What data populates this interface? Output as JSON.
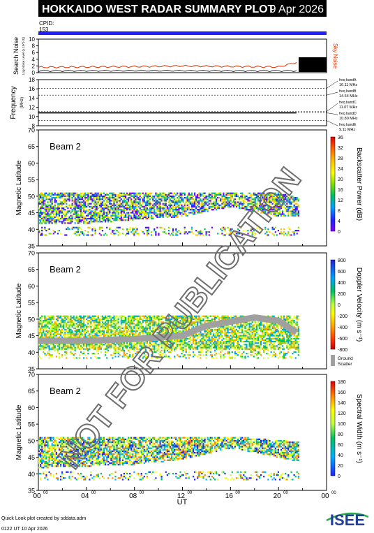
{
  "header": {
    "title": "HOKKAIDO WEST RADAR SUMMARY PLOT",
    "date": "9 Apr 2026",
    "cpid_label": "CPID:",
    "cpid_value": "153"
  },
  "colors": {
    "header_bg": "#000000",
    "cpid_bar": "#2020ff",
    "noise_search": "#000000",
    "noise_sky": "#e03000",
    "ground_scatter": "#a0a0a0"
  },
  "noise_panel": {
    "ylabel": "Search Noise",
    "ylabel_sub": "Log Noise Level (x 10^(-3))",
    "right_label": "Sky Noise",
    "yticks": [
      "10",
      "8",
      "6",
      "4",
      "2",
      "0"
    ]
  },
  "freq_panel": {
    "ylabel": "Frequency",
    "ylabel_unit": "(MHz)",
    "yticks": [
      "18",
      "16",
      "14",
      "12",
      "10",
      "8"
    ],
    "bands": [
      {
        "label": "freq bandA",
        "value": "16.11 MHz"
      },
      {
        "label": "freq bandB",
        "value": "14.64 MHz"
      },
      {
        "label": "freq bandC",
        "value": "11.07 MHz"
      },
      {
        "label": "freq bandD",
        "value": "10.80 MHz"
      },
      {
        "label": "freq bandE",
        "value": "9.11 MHz"
      }
    ]
  },
  "panels": [
    {
      "beam_label": "Beam  2",
      "ylabel": "Magnetic Latitude",
      "yticks": [
        "70",
        "65",
        "60",
        "55",
        "50",
        "45",
        "40",
        "35"
      ],
      "scale_label": "Backscatter Power (dB)",
      "scale_ticks": [
        "36",
        "32",
        "28",
        "24",
        "20",
        "16",
        "12",
        "8",
        "4",
        "0"
      ]
    },
    {
      "beam_label": "Beam  2",
      "ylabel": "Magnetic Latitude",
      "yticks": [
        "70",
        "65",
        "60",
        "55",
        "50",
        "45",
        "40",
        "35"
      ],
      "scale_label": "Doppler Velocity (m s⁻¹)",
      "scale_ticks": [
        "800",
        "600",
        "400",
        "200",
        "0",
        "-200",
        "-400",
        "-600",
        "-800"
      ],
      "gs_label_1": "Ground",
      "gs_label_2": "Scatter"
    },
    {
      "beam_label": "Beam  2",
      "ylabel": "Magnetic Latitude",
      "yticks": [
        "70",
        "65",
        "60",
        "55",
        "50",
        "45",
        "40",
        "35"
      ],
      "scale_label": "Spectral Width (m s⁻¹)",
      "scale_ticks": [
        "180",
        "160",
        "140",
        "120",
        "100",
        "80",
        "60",
        "40",
        "20",
        "0"
      ]
    }
  ],
  "xaxis": {
    "ticks": [
      "00",
      "04",
      "08",
      "12",
      "16",
      "20",
      "00"
    ],
    "tick_sup": "00",
    "label": "UT"
  },
  "watermark": "NOT FOR PUBLICATION",
  "footer": {
    "line1": "Quick Look plot created by sddata.adm",
    "line2": "0122 UT 10 Apr 2026",
    "logo_text": "ISEE"
  },
  "chart_data": {
    "type": "heatmap",
    "title": "HOKKAIDO WEST RADAR SUMMARY PLOT",
    "xlabel": "UT",
    "ylabel": "Magnetic Latitude",
    "xlim": [
      0,
      24
    ],
    "ylim": [
      35,
      70
    ],
    "grid": false,
    "series": [
      {
        "name": "Backscatter Power (dB)",
        "range": [
          0,
          36
        ],
        "scatter_band": [
          {
            "ut": 0,
            "lat_low": 42.0,
            "lat_high": 51.5
          },
          {
            "ut": 4,
            "lat_low": 42.0,
            "lat_high": 51.5
          },
          {
            "ut": 8,
            "lat_low": 43.0,
            "lat_high": 51.5
          },
          {
            "ut": 12,
            "lat_low": 44.0,
            "lat_high": 51.5
          },
          {
            "ut": 16,
            "lat_low": 47.0,
            "lat_high": 51.5
          },
          {
            "ut": 20,
            "lat_low": 44.0,
            "lat_high": 51.5
          },
          {
            "ut": 21.5,
            "lat_low": 44.0,
            "lat_high": 50.0
          }
        ]
      },
      {
        "name": "Doppler Velocity (m s⁻¹)",
        "range": [
          -800,
          800
        ],
        "ground_scatter_ridge": [
          {
            "ut": 0,
            "lat": 43.5
          },
          {
            "ut": 4,
            "lat": 43.5
          },
          {
            "ut": 8,
            "lat": 44.0
          },
          {
            "ut": 12,
            "lat": 45.0
          },
          {
            "ut": 14,
            "lat": 48.0
          },
          {
            "ut": 18,
            "lat": 50.5
          },
          {
            "ut": 20,
            "lat": 49.5
          },
          {
            "ut": 21.5,
            "lat": 46.0
          }
        ]
      },
      {
        "name": "Spectral Width (m s⁻¹)",
        "range": [
          0,
          180
        ],
        "scatter_band": [
          {
            "ut": 0,
            "lat_low": 42.0,
            "lat_high": 51.5
          },
          {
            "ut": 8,
            "lat_low": 43.0,
            "lat_high": 51.5
          },
          {
            "ut": 12,
            "lat_low": 44.5,
            "lat_high": 51.5
          },
          {
            "ut": 16,
            "lat_low": 48.0,
            "lat_high": 51.5
          },
          {
            "ut": 21.5,
            "lat_low": 44.0,
            "lat_high": 50.0
          }
        ]
      },
      {
        "name": "Search Noise",
        "values": [
          {
            "ut": 0,
            "v": 1.6
          },
          {
            "ut": 8,
            "v": 1.8
          },
          {
            "ut": 12,
            "v": 2.0
          },
          {
            "ut": 20,
            "v": 1.7
          },
          {
            "ut": 22,
            "v": 3.5
          }
        ]
      },
      {
        "name": "Frequency",
        "values": [
          {
            "ut": 0,
            "v": 10.8
          },
          {
            "ut": 12,
            "v": 10.8
          },
          {
            "ut": 21.5,
            "v": 10.8
          }
        ]
      }
    ]
  }
}
